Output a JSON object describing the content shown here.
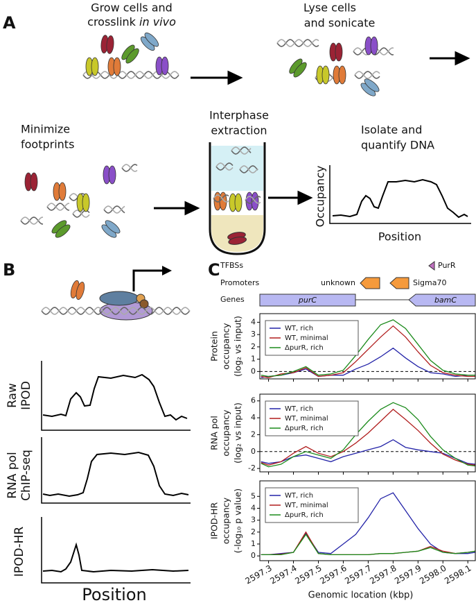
{
  "panel_a": {
    "label": "A",
    "step1": {
      "line1": "Grow cells and",
      "line2": "crosslink",
      "line2_italic": "in vivo"
    },
    "step2": [
      "Lyse cells",
      "and sonicate"
    ],
    "step3": [
      "Minimize",
      "footprints"
    ],
    "step4": [
      "Interphase",
      "extraction"
    ],
    "step5": [
      "Isolate and",
      "quantify DNA"
    ],
    "plot": {
      "y_label": "Occupancy",
      "x_label": "Position"
    }
  },
  "panel_b": {
    "label": "B",
    "tracks": [
      [
        "Raw",
        "IPOD"
      ],
      [
        "RNA pol",
        "ChIP-seq"
      ],
      [
        "IPOD-HR"
      ]
    ],
    "x_label": "Position"
  },
  "panel_c": {
    "label": "C",
    "track_labels": [
      "TFBSs",
      "Promoters",
      "Genes"
    ],
    "tfbs": [
      "PurR"
    ],
    "promoters": [
      "unknown",
      "Sigma70"
    ],
    "genes": [
      "purC",
      "bamC"
    ]
  },
  "chart_data": [
    {
      "type": "line",
      "y_label": [
        "Protein",
        "occupancy",
        "(log₂ vs input)"
      ],
      "xlim": [
        2597.265,
        2598.13
      ],
      "ylim": [
        -0.6,
        4.7
      ],
      "yticks": [
        0,
        1,
        2,
        3,
        4
      ],
      "hline": 0,
      "legend": "upper left",
      "x": [
        2597.27,
        2597.3,
        2597.35,
        2597.4,
        2597.45,
        2597.5,
        2597.55,
        2597.6,
        2597.65,
        2597.7,
        2597.75,
        2597.8,
        2597.85,
        2597.9,
        2597.95,
        2598.0,
        2598.05,
        2598.1,
        2598.13
      ],
      "series": [
        {
          "name": "WT, rich",
          "color": "#2323a8",
          "values": [
            -0.5,
            -0.4,
            -0.3,
            -0.1,
            0.2,
            -0.4,
            -0.3,
            -0.3,
            0.2,
            0.6,
            1.2,
            1.9,
            1.1,
            0.4,
            -0.1,
            -0.2,
            -0.4,
            -0.3,
            -0.3
          ]
        },
        {
          "name": "WT, minimal",
          "color": "#b01c1c",
          "values": [
            -0.4,
            -0.5,
            -0.2,
            -0.1,
            0.3,
            -0.4,
            -0.3,
            -0.1,
            0.8,
            1.8,
            2.8,
            3.7,
            2.8,
            1.6,
            0.5,
            -0.1,
            -0.3,
            -0.4,
            -0.4
          ]
        },
        {
          "name": "ΔpurR, rich",
          "color": "#1a8a1a",
          "values": [
            -0.3,
            -0.4,
            -0.3,
            0,
            0.4,
            -0.3,
            -0.2,
            0.1,
            1.3,
            2.6,
            3.8,
            4.2,
            3.5,
            2.2,
            0.9,
            0.1,
            -0.2,
            -0.3,
            -0.3
          ]
        }
      ]
    },
    {
      "type": "line",
      "y_label": [
        "RNA pol",
        "occupancy",
        "(log₂ vs input)"
      ],
      "xlim": [
        2597.265,
        2598.13
      ],
      "ylim": [
        -2.4,
        6.8
      ],
      "yticks": [
        -2,
        0,
        2,
        4,
        6
      ],
      "hline": 0,
      "legend": "upper left",
      "x": [
        2597.27,
        2597.3,
        2597.35,
        2597.4,
        2597.45,
        2597.5,
        2597.55,
        2597.6,
        2597.65,
        2597.7,
        2597.75,
        2597.8,
        2597.85,
        2597.9,
        2597.95,
        2598.0,
        2598.05,
        2598.1,
        2598.13
      ],
      "series": [
        {
          "name": "WT, rich",
          "color": "#2323a8",
          "values": [
            -1.2,
            -1.4,
            -1.2,
            -0.6,
            -0.4,
            -0.8,
            -1.2,
            -0.6,
            -0.2,
            0.2,
            0.6,
            1.4,
            0.5,
            0.2,
            0,
            -0.2,
            -0.8,
            -1.4,
            -1.5
          ]
        },
        {
          "name": "WT, minimal",
          "color": "#b01c1c",
          "values": [
            -1.3,
            -1.6,
            -1.2,
            -0.2,
            0.6,
            -0.2,
            -0.6,
            0,
            1.0,
            2.2,
            3.6,
            5.0,
            3.8,
            2.5,
            1.0,
            -0.3,
            -1.0,
            -1.5,
            -1.6
          ]
        },
        {
          "name": "ΔpurR, rich",
          "color": "#1a8a1a",
          "values": [
            -1.4,
            -1.8,
            -1.5,
            -0.6,
            0,
            -0.4,
            -0.8,
            0.2,
            2.0,
            3.6,
            5.0,
            5.8,
            5.2,
            3.8,
            1.8,
            0.2,
            -0.8,
            -1.6,
            -1.7
          ]
        }
      ]
    },
    {
      "type": "line",
      "y_label": [
        "IPOD-HR",
        "occupancy",
        "(-log₁₀ p value)"
      ],
      "x_label": "Genomic location (kbp)",
      "xlim": [
        2597.265,
        2598.13
      ],
      "ylim": [
        -0.4,
        6.3
      ],
      "yticks": [
        0,
        1,
        2,
        3,
        4,
        5
      ],
      "legend": "upper left",
      "xticks": [
        2597.3,
        2597.4,
        2597.5,
        2597.6,
        2597.7,
        2597.8,
        2597.9,
        {
          "value": 2598,
          "label": "2598.0"
        },
        2598.1
      ],
      "x": [
        2597.27,
        2597.3,
        2597.35,
        2597.4,
        2597.45,
        2597.5,
        2597.55,
        2597.6,
        2597.65,
        2597.7,
        2597.75,
        2597.8,
        2597.85,
        2597.9,
        2597.95,
        2598.0,
        2598.05,
        2598.1,
        2598.13
      ],
      "series": [
        {
          "name": "WT, rich",
          "color": "#2323a8",
          "values": [
            0.1,
            0.1,
            0.2,
            0.3,
            1.9,
            0.3,
            0.2,
            1.0,
            1.8,
            3.2,
            4.8,
            5.3,
            3.8,
            2.3,
            1.0,
            0.3,
            0.2,
            0.2,
            0.3
          ]
        },
        {
          "name": "WT, minimal",
          "color": "#b01c1c",
          "values": [
            0.1,
            0.1,
            0.15,
            0.3,
            2.0,
            0.2,
            0.1,
            0.1,
            0.1,
            0.1,
            0.2,
            0.2,
            0.3,
            0.4,
            0.8,
            0.4,
            0.2,
            0.3,
            0.4
          ]
        },
        {
          "name": "ΔpurR, rich",
          "color": "#1a8a1a",
          "values": [
            0.1,
            0.1,
            0.1,
            0.3,
            1.8,
            0.2,
            0.1,
            0.1,
            0.1,
            0.1,
            0.2,
            0.2,
            0.3,
            0.4,
            0.7,
            0.3,
            0.2,
            0.3,
            0.4
          ]
        }
      ]
    }
  ]
}
